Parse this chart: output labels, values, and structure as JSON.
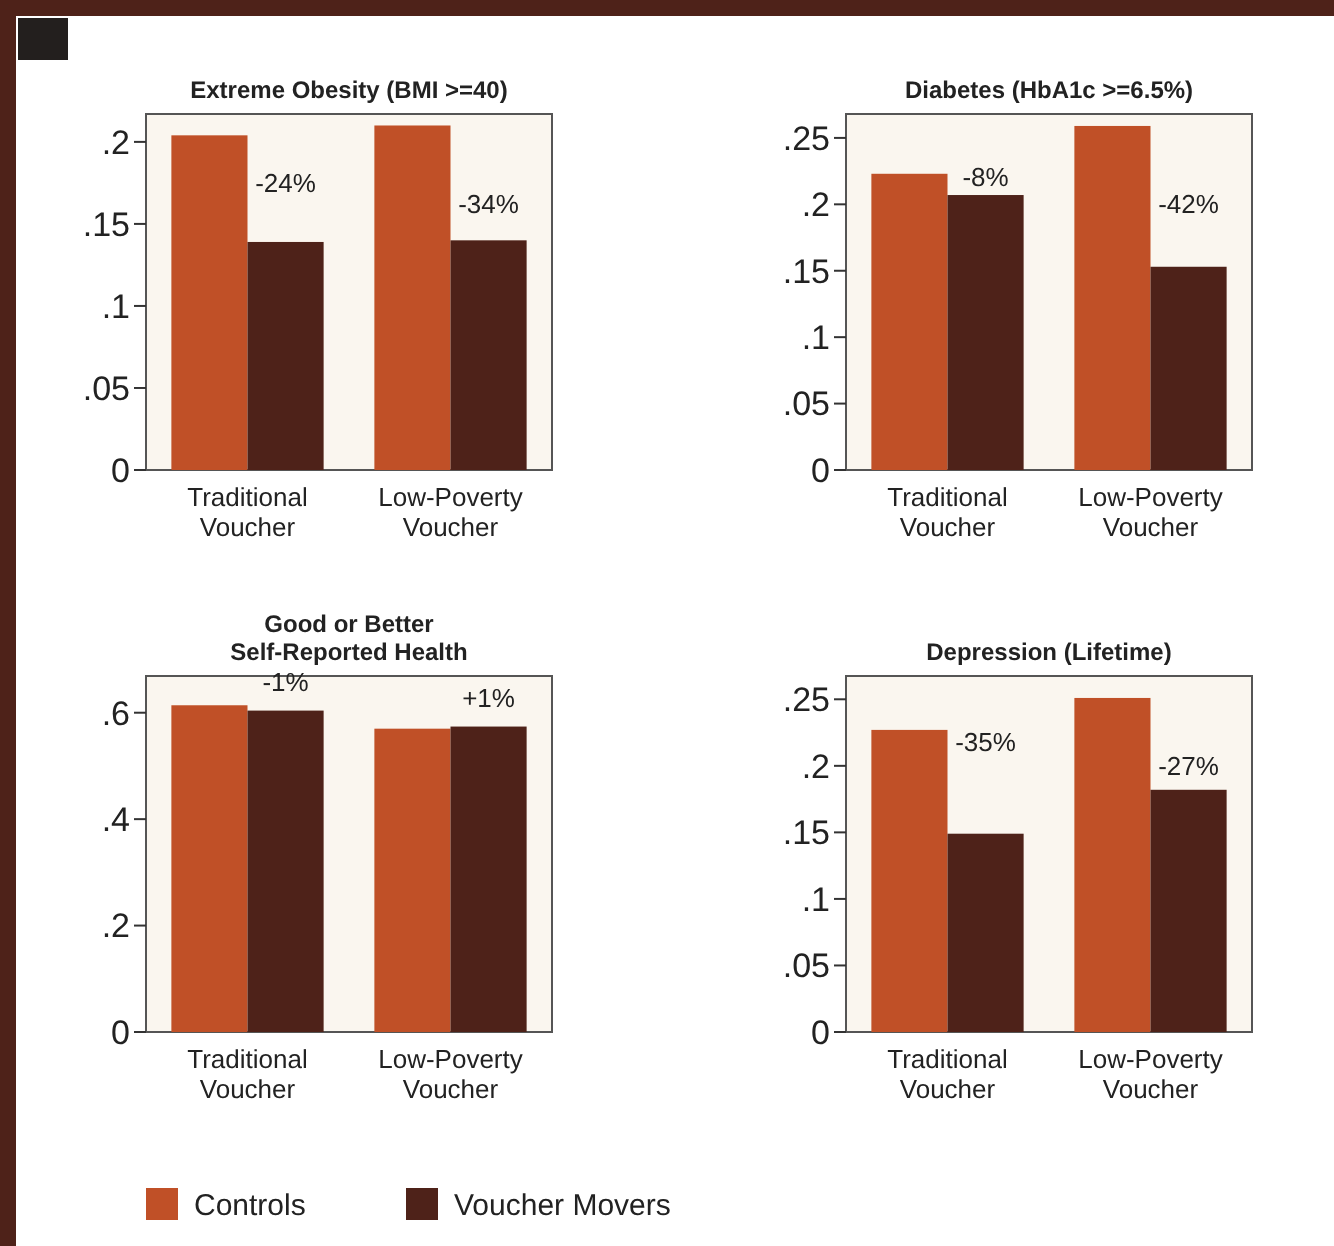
{
  "chart_data": [
    {
      "type": "bar",
      "title": "Extreme Obesity (BMI >=40)",
      "categories": [
        "Traditional Voucher",
        "Low-Poverty Voucher"
      ],
      "series": [
        {
          "color": "#c05027",
          "values": [
            0.204,
            0.21
          ]
        },
        {
          "color": "#4e2219",
          "values": [
            0.139,
            0.14
          ]
        }
      ],
      "ylim": [
        0,
        0.217
      ],
      "yticks": [
        {
          "value": 0,
          "label": "0"
        },
        {
          "value": 0.05,
          "label": ".05"
        },
        {
          "value": 0.1,
          "label": ".1"
        },
        {
          "value": 0.15,
          "label": ".15"
        },
        {
          "value": 0.2,
          "label": ".2"
        }
      ],
      "annotations": [
        {
          "text": "-24%",
          "x": "Traditional Voucher",
          "y": 0.175
        },
        {
          "text": "-34%",
          "x": "Low-Poverty Voucher",
          "y": 0.162
        }
      ],
      "grid": false,
      "legend": false
    },
    {
      "type": "bar",
      "title": "Diabetes (HbA1c >=6.5%)",
      "categories": [
        "Traditional Voucher",
        "Low-Poverty Voucher"
      ],
      "series": [
        {
          "color": "#c05027",
          "values": [
            0.223,
            0.259
          ]
        },
        {
          "color": "#4e2219",
          "values": [
            0.207,
            0.153
          ]
        }
      ],
      "ylim": [
        0,
        0.268
      ],
      "yticks": [
        {
          "value": 0,
          "label": "0"
        },
        {
          "value": 0.05,
          "label": ".05"
        },
        {
          "value": 0.1,
          "label": ".1"
        },
        {
          "value": 0.15,
          "label": ".15"
        },
        {
          "value": 0.2,
          "label": ".2"
        },
        {
          "value": 0.25,
          "label": ".25"
        }
      ],
      "annotations": [
        {
          "text": "-8%",
          "x": "Traditional Voucher",
          "y": 0.221
        },
        {
          "text": "-42%",
          "x": "Low-Poverty Voucher",
          "y": 0.2
        }
      ],
      "grid": false,
      "legend": false
    },
    {
      "type": "bar",
      "title": "Good or Better\nSelf-Reported Health",
      "categories": [
        "Traditional Voucher",
        "Low-Poverty Voucher"
      ],
      "series": [
        {
          "name": "Controls",
          "color": "#c05027",
          "values": [
            0.614,
            0.57
          ]
        },
        {
          "name": "Voucher Movers",
          "color": "#4e2219",
          "values": [
            0.604,
            0.574
          ]
        }
      ],
      "ylim": [
        0,
        0.669
      ],
      "yticks": [
        {
          "value": 0,
          "label": "0"
        },
        {
          "value": 0.2,
          "label": ".2"
        },
        {
          "value": 0.4,
          "label": ".4"
        },
        {
          "value": 0.6,
          "label": ".6"
        }
      ],
      "annotations": [
        "-1%",
        "+1%"
      ],
      "grid": false,
      "legend": "bottom"
    },
    {
      "type": "bar",
      "title": "Depression (Lifetime)",
      "categories": [
        "Traditional Voucher",
        "Low-Poverty Voucher"
      ],
      "series": [
        {
          "color": "#c05027",
          "values": [
            0.227,
            0.251
          ]
        },
        {
          "color": "#4e2219",
          "values": [
            0.149,
            0.182
          ]
        }
      ],
      "ylim": [
        0,
        0.2675
      ],
      "yticks": [
        {
          "value": 0,
          "label": "0"
        },
        {
          "value": 0.05,
          "label": ".05"
        },
        {
          "value": 0.1,
          "label": ".1"
        },
        {
          "value": 0.15,
          "label": ".15"
        },
        {
          "value": 0.2,
          "label": ".2"
        },
        {
          "value": 0.25,
          "label": ".25"
        }
      ],
      "annotations": [
        {
          "text": "-35%",
          "x": "Traditional Voucher",
          "y": 0.218
        },
        {
          "text": "-27%",
          "x": "Low-Poverty Voucher",
          "y": 0.2
        }
      ],
      "grid": false,
      "legend": false
    }
  ]
}
